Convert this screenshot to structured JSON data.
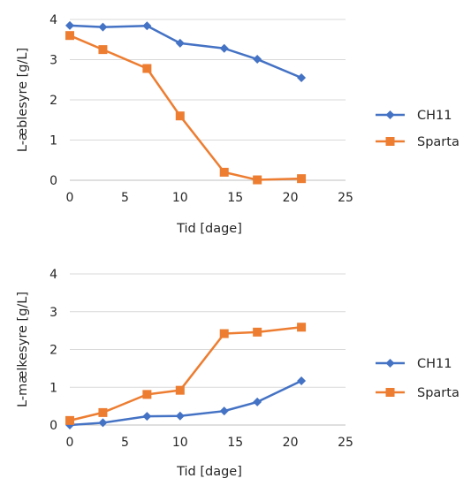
{
  "chart_data": [
    {
      "type": "line",
      "xlabel": "Tid [dage]",
      "ylabel": "L-æblesyre [g/L]",
      "xlim": [
        0,
        25
      ],
      "ylim": [
        0,
        4
      ],
      "xticks": [
        "0",
        "5",
        "10",
        "15",
        "20",
        "25"
      ],
      "yticks": [
        "0",
        "1",
        "2",
        "3",
        "4"
      ],
      "grid": "horizontal",
      "legend_position": "right",
      "x": [
        0,
        3,
        7,
        10,
        14,
        17,
        21
      ],
      "series": [
        {
          "name": "CH11",
          "color": "#4472C4",
          "marker": "diamond",
          "values": [
            3.85,
            3.81,
            3.84,
            3.41,
            3.28,
            3.01,
            2.55
          ]
        },
        {
          "name": "Sparta",
          "color": "#ED7D31",
          "marker": "square",
          "values": [
            3.6,
            3.25,
            2.78,
            1.6,
            0.2,
            0.01,
            0.04
          ]
        }
      ]
    },
    {
      "type": "line",
      "xlabel": "Tid [dage]",
      "ylabel": "L-mælkesyre [g/L]",
      "xlim": [
        0,
        25
      ],
      "ylim": [
        0,
        4
      ],
      "xticks": [
        "0",
        "5",
        "10",
        "15",
        "20",
        "25"
      ],
      "yticks": [
        "0",
        "1",
        "2",
        "3",
        "4"
      ],
      "grid": "horizontal",
      "legend_position": "right",
      "x": [
        0,
        3,
        7,
        10,
        14,
        17,
        21
      ],
      "series": [
        {
          "name": "CH11",
          "color": "#4472C4",
          "marker": "diamond",
          "values": [
            0.0,
            0.06,
            0.23,
            0.24,
            0.37,
            0.61,
            1.17
          ]
        },
        {
          "name": "Sparta",
          "color": "#ED7D31",
          "marker": "square",
          "values": [
            0.12,
            0.33,
            0.81,
            0.92,
            2.42,
            2.46,
            2.59
          ]
        }
      ]
    }
  ]
}
